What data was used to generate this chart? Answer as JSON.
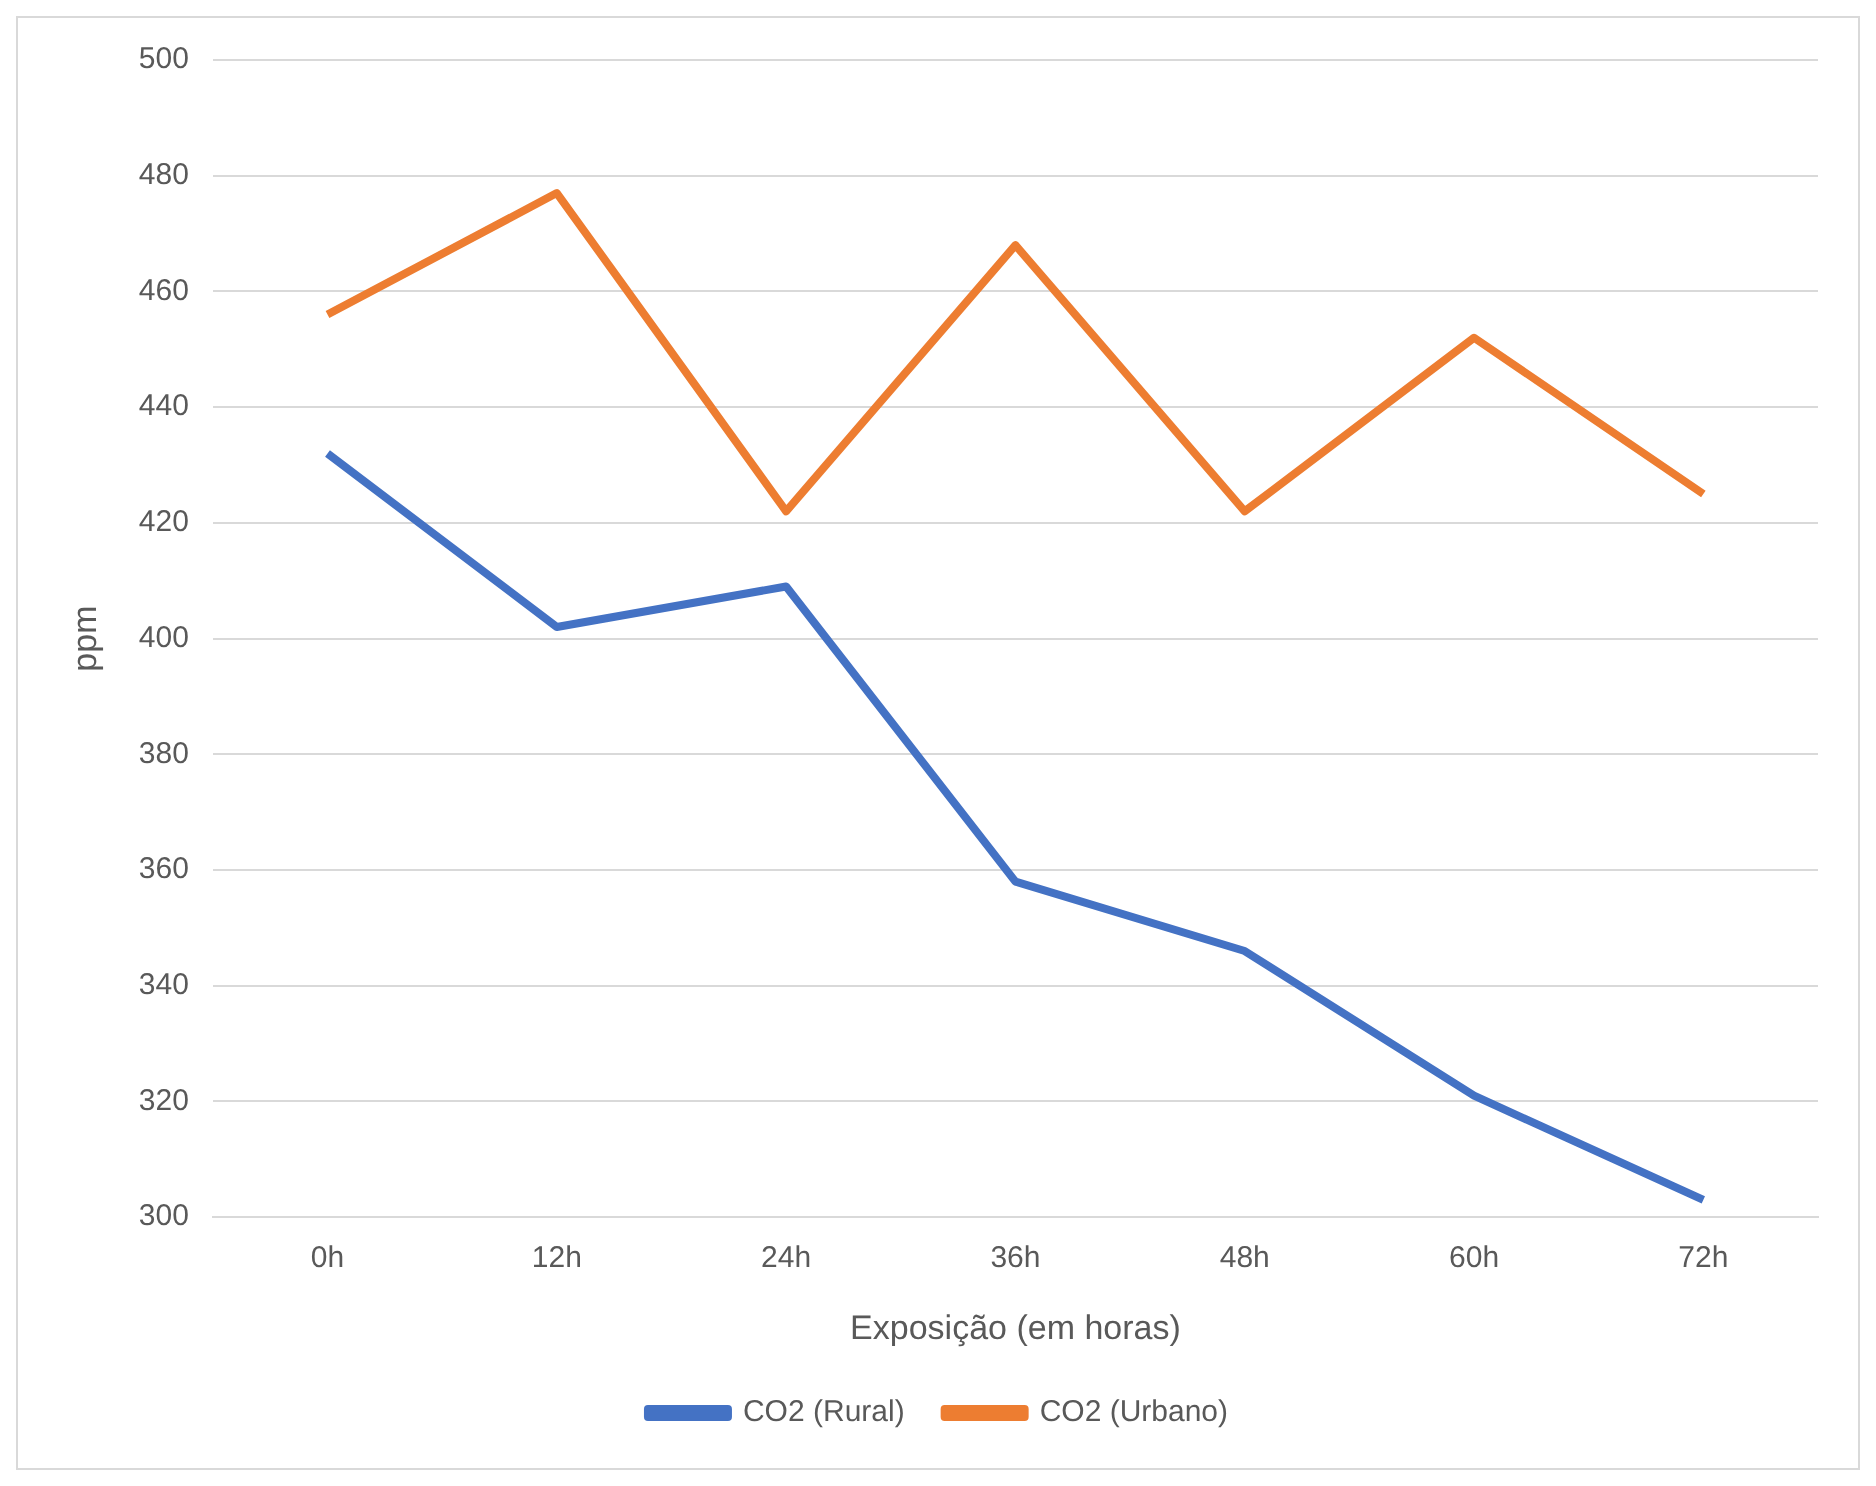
{
  "chart_data": {
    "type": "line",
    "xlabel": "Exposição (em horas)",
    "ylabel": "ppm",
    "categories": [
      "0h",
      "12h",
      "24h",
      "36h",
      "48h",
      "60h",
      "72h"
    ],
    "series": [
      {
        "name": "CO2 (Rural)",
        "color": "#4472c4",
        "values": [
          432,
          402,
          409,
          358,
          346,
          321,
          303
        ]
      },
      {
        "name": "CO2 (Urbano)",
        "color": "#ed7d31",
        "values": [
          456,
          477,
          422,
          468,
          422,
          452,
          425
        ]
      }
    ],
    "ylim": [
      300,
      500
    ],
    "yticks": [
      300,
      320,
      340,
      360,
      380,
      400,
      420,
      440,
      460,
      480,
      500
    ],
    "grid": "y",
    "legend": "bottom",
    "marker": "none",
    "line_style": "solid"
  }
}
